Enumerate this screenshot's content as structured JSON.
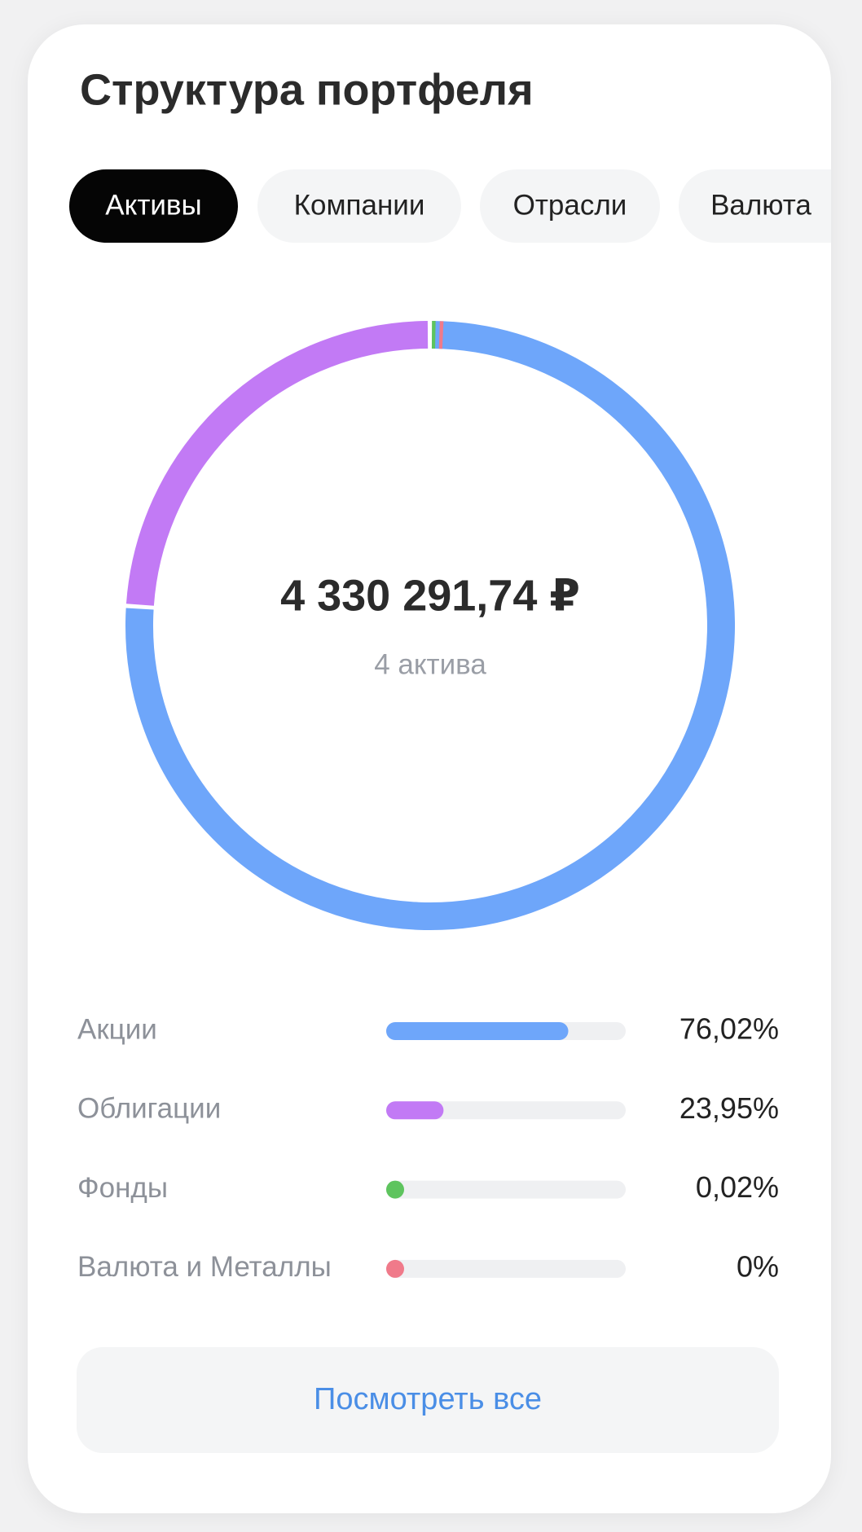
{
  "header": {
    "title": "Структура портфеля"
  },
  "tabs": [
    "Активы",
    "Компании",
    "Отрасли",
    "Валюта"
  ],
  "chart_data": {
    "type": "pie",
    "center_value": "4 330 291,74 ₽",
    "center_label": "4 актива",
    "categories": [
      "Акции",
      "Облигации",
      "Фонды",
      "Валюта и Металлы"
    ],
    "values": [
      76.02,
      23.95,
      0.02,
      0
    ],
    "value_labels": [
      "76,02%",
      "23,95%",
      "0,02%",
      "0%"
    ],
    "colors": [
      "#6ea6fa",
      "#c27af5",
      "#5ec45e",
      "#f07a8a"
    ]
  },
  "button": "Посмотреть все"
}
